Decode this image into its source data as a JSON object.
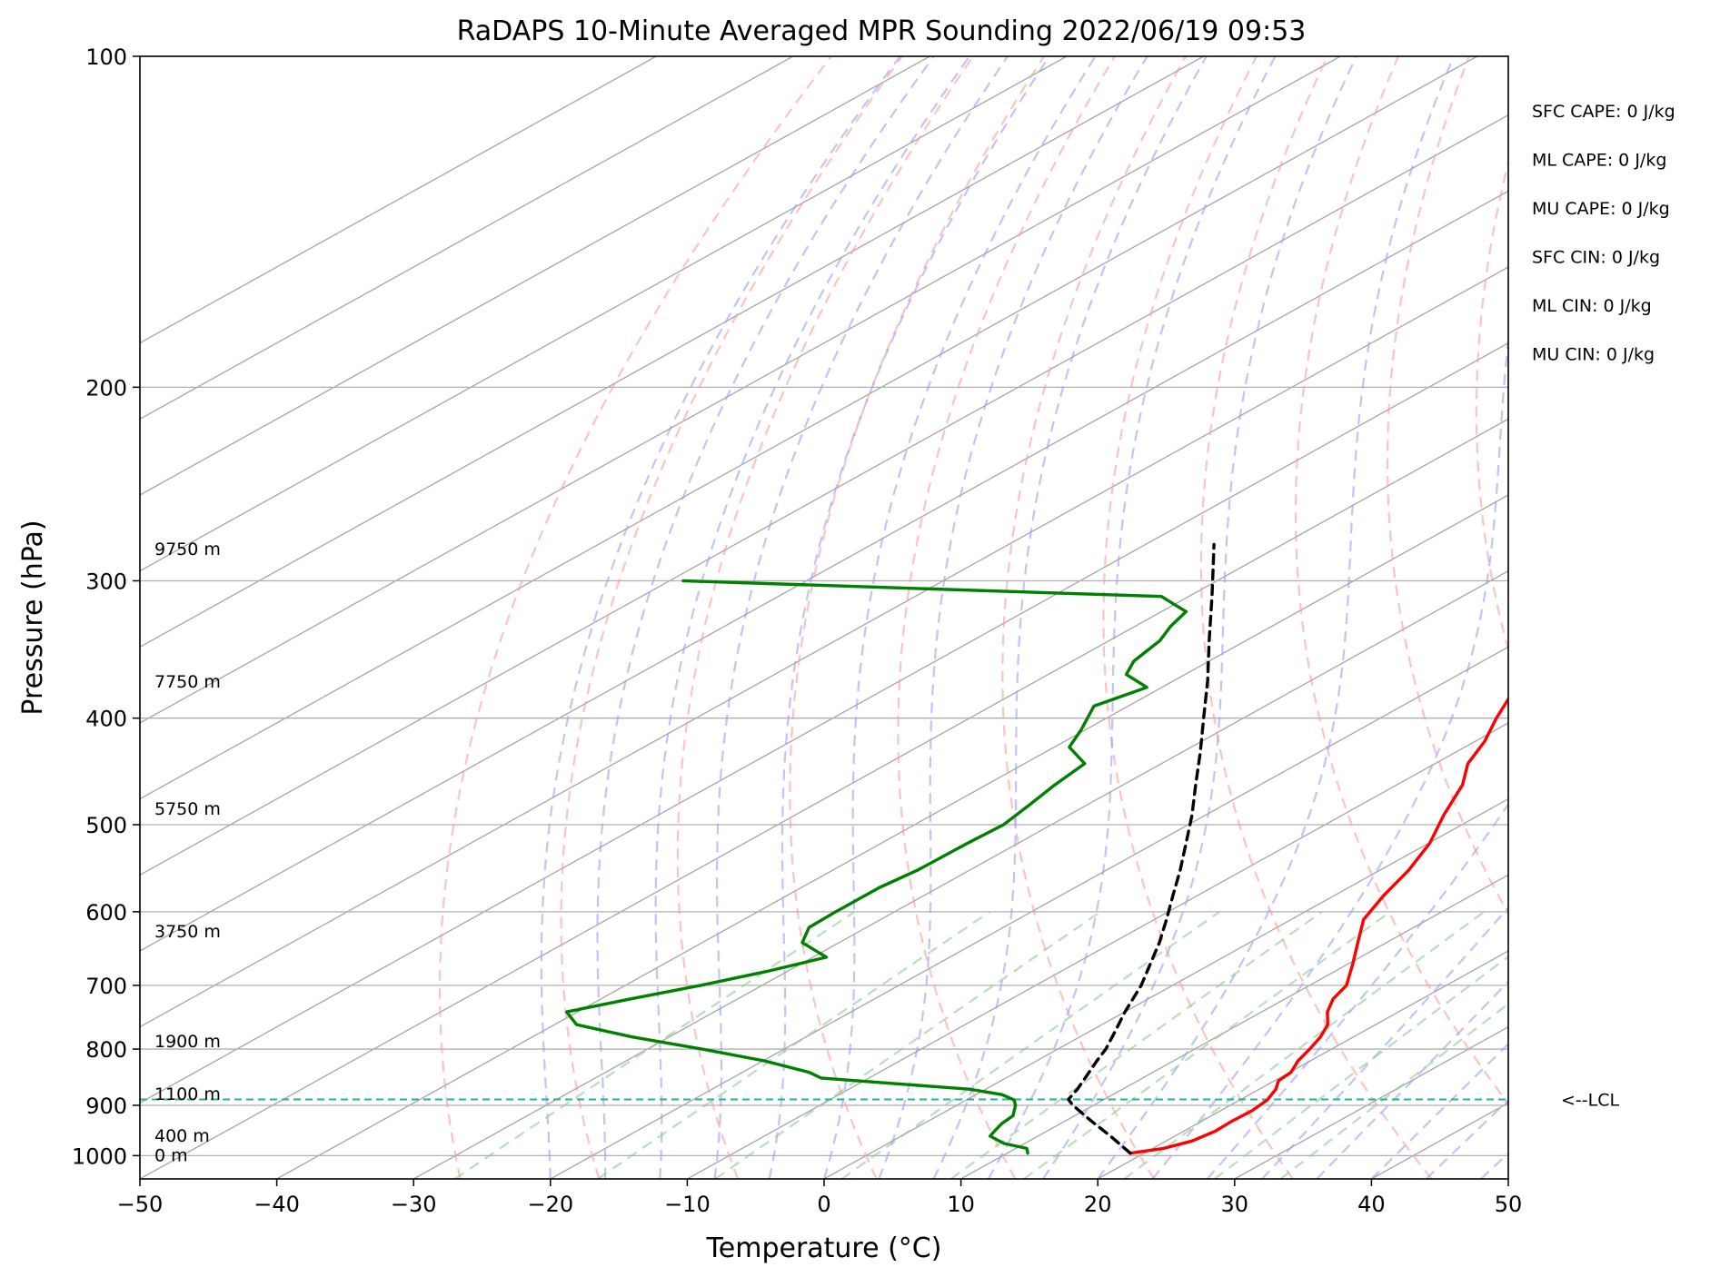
{
  "chart_data": {
    "type": "line",
    "title": "RaDAPS 10-Minute Averaged MPR Sounding 2022/06/19 09:53",
    "xlabel": "Temperature (°C)",
    "ylabel": "Pressure (hPa)",
    "xlim": [
      -50,
      50
    ],
    "ylim": [
      1050,
      100
    ],
    "y_scale": "log",
    "grid": true,
    "x_ticks": [
      -50,
      -40,
      -30,
      -20,
      -10,
      0,
      10,
      20,
      30,
      40,
      50
    ],
    "x_tick_labels": [
      "−50",
      "−40",
      "−30",
      "−20",
      "−10",
      "0",
      "10",
      "20",
      "30",
      "40",
      "50"
    ],
    "y_ticks": [
      100,
      200,
      300,
      400,
      500,
      600,
      700,
      800,
      900,
      1000
    ],
    "y_tick_labels": [
      "100",
      "200",
      "300",
      "400",
      "500",
      "600",
      "700",
      "800",
      "900",
      "1000"
    ],
    "colors": {
      "temperature": "#ff0000",
      "dewpoint": "#008000",
      "parcel": "#000000",
      "dry_adiabats": "#ff9999",
      "moist_adiabats": "#9999ff",
      "mixing_ratio": "#88cc88",
      "isotherms": "#999999",
      "lcl": "#20b2aa"
    },
    "series": [
      {
        "key": "temperature",
        "points": [
          [
            995,
            19.0
          ],
          [
            985,
            20.8
          ],
          [
            970,
            21.9
          ],
          [
            950,
            22.3
          ],
          [
            930,
            22.2
          ],
          [
            910,
            22.3
          ],
          [
            890,
            22.0
          ],
          [
            870,
            21.2
          ],
          [
            855,
            20.3
          ],
          [
            840,
            20.1
          ],
          [
            820,
            19.1
          ],
          [
            800,
            18.4
          ],
          [
            780,
            17.6
          ],
          [
            760,
            16.5
          ],
          [
            740,
            14.8
          ],
          [
            720,
            13.5
          ],
          [
            700,
            12.7
          ],
          [
            670,
            10.4
          ],
          [
            640,
            7.9
          ],
          [
            610,
            5.3
          ],
          [
            580,
            3.6
          ],
          [
            550,
            2.1
          ],
          [
            520,
            0.1
          ],
          [
            490,
            -2.6
          ],
          [
            460,
            -5.2
          ],
          [
            440,
            -7.6
          ],
          [
            420,
            -9.3
          ],
          [
            400,
            -11.5
          ],
          [
            380,
            -13.6
          ],
          [
            360,
            -16.1
          ],
          [
            340,
            -18.7
          ],
          [
            320,
            -21.0
          ],
          [
            300,
            -23.4
          ],
          [
            290,
            -24.9
          ],
          [
            278,
            -26.7
          ]
        ]
      },
      {
        "key": "dewpoint",
        "points": [
          [
            995,
            11.5
          ],
          [
            985,
            10.8
          ],
          [
            975,
            8.5
          ],
          [
            960,
            6.5
          ],
          [
            948,
            6.1
          ],
          [
            935,
            5.7
          ],
          [
            920,
            5.5
          ],
          [
            900,
            4.3
          ],
          [
            890,
            3.5
          ],
          [
            880,
            1.9
          ],
          [
            870,
            -1.2
          ],
          [
            860,
            -7.4
          ],
          [
            850,
            -13.5
          ],
          [
            840,
            -15.1
          ],
          [
            820,
            -19.9
          ],
          [
            800,
            -26.0
          ],
          [
            780,
            -32.7
          ],
          [
            760,
            -38.4
          ],
          [
            740,
            -40.8
          ],
          [
            720,
            -37.8
          ],
          [
            700,
            -34.5
          ],
          [
            680,
            -31.5
          ],
          [
            660,
            -29.0
          ],
          [
            640,
            -32.7
          ],
          [
            620,
            -34.2
          ],
          [
            600,
            -34.3
          ],
          [
            570,
            -34.3
          ],
          [
            550,
            -33.8
          ],
          [
            520,
            -33.7
          ],
          [
            500,
            -33.5
          ],
          [
            480,
            -34.2
          ],
          [
            460,
            -35.0
          ],
          [
            440,
            -35.6
          ],
          [
            425,
            -38.9
          ],
          [
            410,
            -40.3
          ],
          [
            390,
            -42.5
          ],
          [
            375,
            -41.1
          ],
          [
            365,
            -44.3
          ],
          [
            355,
            -45.5
          ],
          [
            340,
            -46.3
          ],
          [
            330,
            -47.4
          ],
          [
            320,
            -48.2
          ],
          [
            310,
            -52.0
          ],
          [
            300,
            -89.0
          ]
        ]
      },
      {
        "key": "parcel",
        "points": [
          [
            995,
            19.0
          ],
          [
            960,
            15.3
          ],
          [
            930,
            11.9
          ],
          [
            900,
            8.5
          ],
          [
            889,
            7.4
          ],
          [
            870,
            6.7
          ],
          [
            850,
            5.8
          ],
          [
            820,
            4.4
          ],
          [
            800,
            3.5
          ],
          [
            770,
            1.8
          ],
          [
            740,
            0.0
          ],
          [
            700,
            -2.3
          ],
          [
            670,
            -4.4
          ],
          [
            640,
            -6.6
          ],
          [
            610,
            -9.1
          ],
          [
            580,
            -11.8
          ],
          [
            550,
            -14.6
          ],
          [
            520,
            -17.7
          ],
          [
            490,
            -21.0
          ],
          [
            460,
            -24.7
          ],
          [
            430,
            -28.6
          ],
          [
            400,
            -32.9
          ],
          [
            370,
            -37.5
          ],
          [
            340,
            -42.7
          ],
          [
            310,
            -48.3
          ],
          [
            290,
            -52.4
          ],
          [
            278,
            -55.0
          ]
        ]
      }
    ],
    "height_labels": [
      {
        "text": "9750 m",
        "p": 281
      },
      {
        "text": "7750 m",
        "p": 371
      },
      {
        "text": "5750 m",
        "p": 484
      },
      {
        "text": "3750 m",
        "p": 626
      },
      {
        "text": "1900 m",
        "p": 788
      },
      {
        "text": "1100 m",
        "p": 880
      },
      {
        "text": "400 m",
        "p": 960
      },
      {
        "text": "0 m",
        "p": 1000
      }
    ],
    "lcl": {
      "p": 889,
      "label": "<--LCL"
    },
    "stats": [
      "SFC CAPE: 0 J/kg",
      "ML CAPE: 0 J/kg",
      "MU CAPE: 0 J/kg",
      "SFC CIN: 0 J/kg",
      "ML CIN: 0 J/kg",
      "MU CIN: 0 J/kg"
    ]
  }
}
